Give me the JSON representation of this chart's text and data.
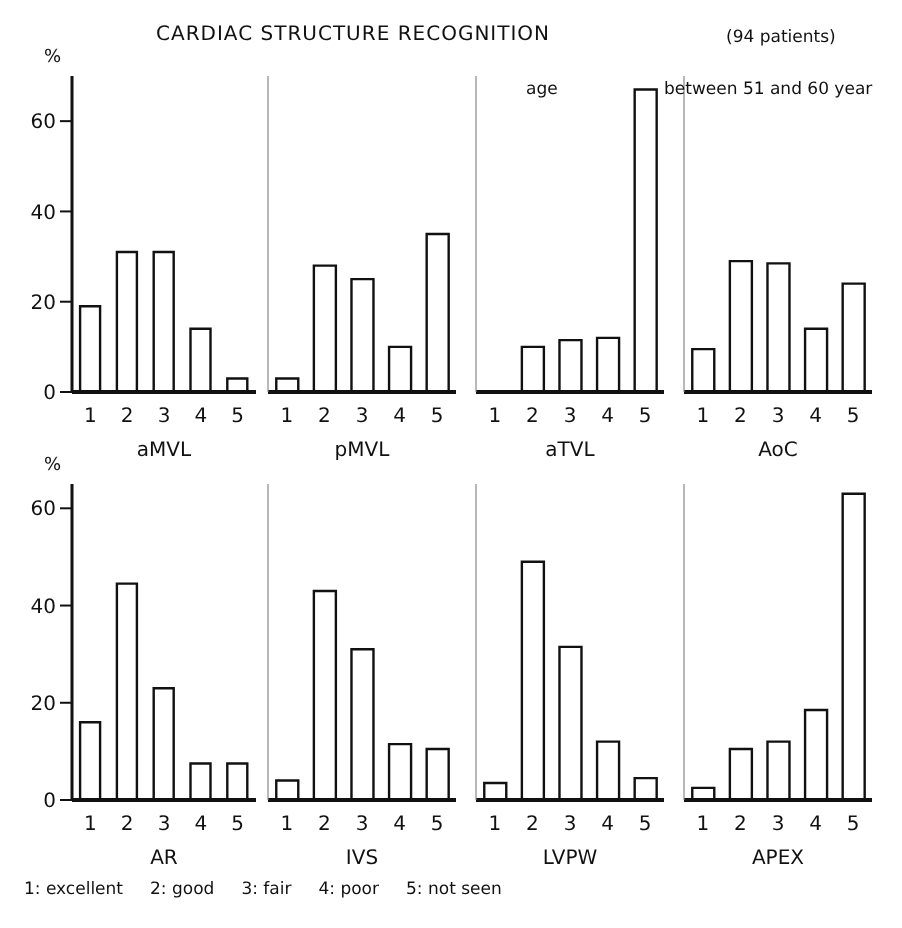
{
  "chart_data": [
    {
      "type": "bar",
      "title": "CARDIAC STRUCTURE RECOGNITION",
      "annotations": [
        "(94 patients)",
        "age",
        "between 51 and 60 year",
        "1: excellent     2: good     3: fair     4: poor     5: not seen"
      ],
      "ylabel": "%",
      "xlabel": "aMVL",
      "categories": [
        "1",
        "2",
        "3",
        "4",
        "5"
      ],
      "values": [
        19,
        31,
        31,
        14,
        3
      ],
      "color": "#ffffff",
      "ylim": [
        0,
        70
      ],
      "yticks": [
        0,
        20,
        40,
        60
      ]
    },
    {
      "type": "bar",
      "xlabel": "pMVL",
      "categories": [
        "1",
        "2",
        "3",
        "4",
        "5"
      ],
      "values": [
        3,
        28,
        25,
        10,
        35
      ],
      "color": "#ffffff",
      "ylim": [
        0,
        70
      ],
      "tick_labels": "x"
    },
    {
      "type": "bar",
      "xlabel": "aTVL",
      "categories": [
        "1",
        "2",
        "3",
        "4",
        "5"
      ],
      "values": [
        0,
        10,
        11.5,
        12,
        67
      ],
      "color": "#ffffff",
      "ylim": [
        0,
        70
      ],
      "tick_labels": "x"
    },
    {
      "type": "bar",
      "xlabel": "AoC",
      "categories": [
        "1",
        "2",
        "3",
        "4",
        "5"
      ],
      "values": [
        9.5,
        29,
        28.5,
        14,
        24
      ],
      "color": "#ffffff",
      "ylim": [
        0,
        70
      ],
      "tick_labels": "x"
    },
    {
      "type": "bar",
      "ylabel": "%",
      "xlabel": "AR",
      "categories": [
        "1",
        "2",
        "3",
        "4",
        "5"
      ],
      "values": [
        16,
        44.5,
        23,
        7.5,
        7.5
      ],
      "color": "#ffffff",
      "ylim": [
        0,
        65
      ],
      "yticks": [
        0,
        20,
        40,
        60
      ]
    },
    {
      "type": "bar",
      "xlabel": "IVS",
      "categories": [
        "1",
        "2",
        "3",
        "4",
        "5"
      ],
      "values": [
        4,
        43,
        31,
        11.5,
        10.5
      ],
      "color": "#ffffff",
      "ylim": [
        0,
        65
      ],
      "tick_labels": "x"
    },
    {
      "type": "bar",
      "xlabel": "LVPW",
      "categories": [
        "1",
        "2",
        "3",
        "4",
        "5"
      ],
      "values": [
        3.5,
        49,
        31.5,
        12,
        4.5
      ],
      "color": "#ffffff",
      "ylim": [
        0,
        65
      ],
      "tick_labels": "x"
    },
    {
      "type": "bar",
      "xlabel": "APEX",
      "categories": [
        "1",
        "2",
        "3",
        "4",
        "5"
      ],
      "values": [
        2.5,
        10.5,
        12,
        18.5,
        63
      ],
      "color": "#ffffff",
      "ylim": [
        0,
        65
      ],
      "tick_labels": "x"
    }
  ]
}
